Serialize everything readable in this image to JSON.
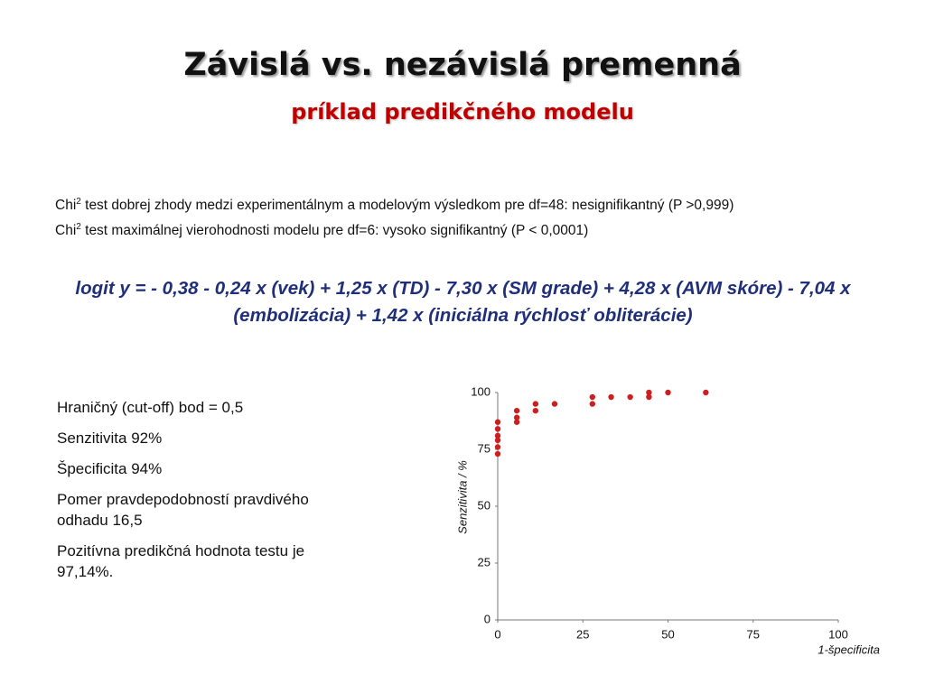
{
  "header": {
    "title": "Závislá vs. nezávislá premenná",
    "subtitle": "príklad predikčného modelu"
  },
  "tests": [
    {
      "prefix": "Chi",
      "sup": "2",
      "text": " test dobrej zhody medzi experimentálnym a modelovým výsledkom pre df=48: nesignifikantný (P >0,999)"
    },
    {
      "prefix": "Chi",
      "sup": "2",
      "text": " test maximálnej vierohodnosti modelu pre df=6: vysoko signifikantný (P < 0,0001)"
    }
  ],
  "formula": "logit y = - 0,38 - 0,24 x (vek) + 1,25 x (TD) - 7,30 x (SM grade) + 4,28 x (AVM skóre) - 7,04 x (embolizácia) + 1,42 x (iniciálna rýchlosť obliterácie)",
  "bullets": [
    "Hraničný (cut-off) bod = 0,5",
    "Senzitivita 92%",
    "Špecificita 94%",
    "Pomer pravdepodobností pravdivého odhadu 16,5",
    "Pozitívna predikčná hodnota testu je 97,14%."
  ],
  "chart_data": {
    "type": "scatter",
    "x_label": "1-špecificita",
    "y_label": "Senzitivita / %",
    "x": [
      0,
      0,
      0,
      0,
      0,
      0,
      5.6,
      5.6,
      5.6,
      11.1,
      11.1,
      16.7,
      27.8,
      27.8,
      33.3,
      38.9,
      44.4,
      44.4,
      50,
      61.1
    ],
    "values": [
      87,
      84,
      81,
      79,
      76,
      73,
      92,
      89,
      87,
      95,
      92,
      95,
      98,
      95,
      98,
      98,
      100,
      98,
      100,
      100
    ],
    "color": "#cc1f1f",
    "xlim": [
      0,
      100
    ],
    "xticks": [
      0,
      25,
      50,
      75,
      100
    ],
    "ylim": [
      0,
      100
    ],
    "yticks": [
      0,
      25,
      50,
      75,
      100
    ],
    "grid": false
  }
}
